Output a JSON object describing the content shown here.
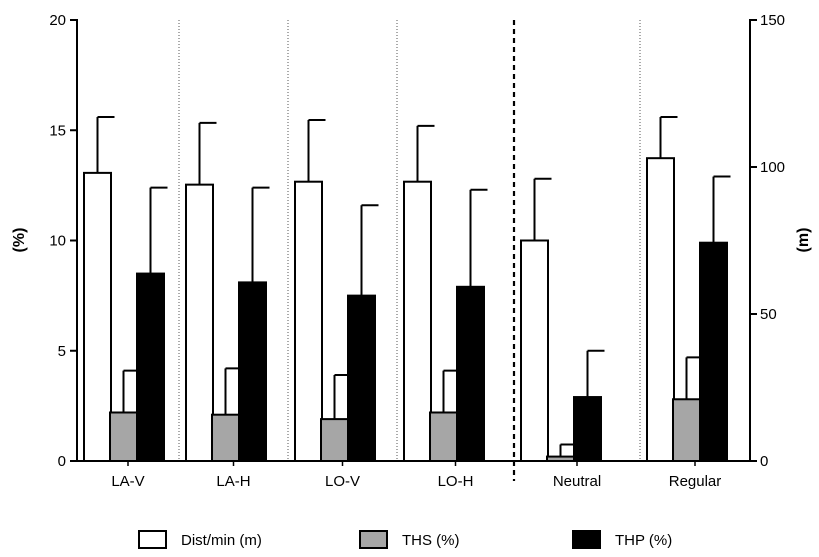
{
  "chart_data": {
    "type": "bar",
    "categories": [
      "LA-V",
      "LA-H",
      "LO-V",
      "LO-H",
      "Neutral",
      "Regular"
    ],
    "left_axis": {
      "label": "(%)",
      "range": [
        0,
        20
      ],
      "ticks": [
        "0",
        "5",
        "10",
        "15",
        "20"
      ]
    },
    "right_axis": {
      "label": "(m)",
      "range": [
        0,
        150
      ],
      "ticks": [
        "0",
        "50",
        "100",
        "150"
      ]
    },
    "series": [
      {
        "name": "Dist/min (m)",
        "axis": "right",
        "color": "#ffffff",
        "values": [
          98,
          94,
          95,
          95,
          75,
          103
        ],
        "errors": [
          19,
          21,
          21,
          19,
          21,
          14
        ]
      },
      {
        "name": "THS (%)",
        "axis": "left",
        "color": "#a6a6a6",
        "values": [
          2.2,
          2.1,
          1.9,
          2.2,
          0.2,
          2.8
        ],
        "errors": [
          1.9,
          2.1,
          2.0,
          1.9,
          0.55,
          1.9
        ]
      },
      {
        "name": "THP (%)",
        "axis": "left",
        "color": "#000000",
        "values": [
          8.5,
          8.1,
          7.5,
          7.9,
          2.9,
          9.9
        ],
        "errors": [
          3.9,
          4.3,
          4.1,
          4.4,
          2.1,
          3.0
        ]
      }
    ],
    "legend": [
      {
        "label": "Dist/min (m)",
        "color": "#ffffff"
      },
      {
        "label": "THS (%)",
        "color": "#a6a6a6"
      },
      {
        "label": "THP (%)",
        "color": "#000000"
      }
    ],
    "legend_placement": "bottom",
    "separator_after_category": "LO-H"
  }
}
